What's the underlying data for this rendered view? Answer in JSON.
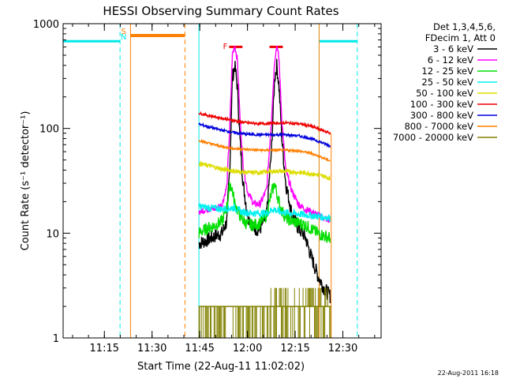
{
  "chart_data": {
    "type": "line",
    "title": "HESSI Observing Summary Count Rates",
    "xlabel": "Start Time (22-Aug-11 11:02:02)",
    "ylabel": "Count Rate (s⁻¹ detector⁻¹)",
    "y_scale": "log",
    "ylim": [
      1,
      1000
    ],
    "xlim_minutes": [
      0,
      100
    ],
    "x_ticks": [
      {
        "label": "11:15",
        "minute": 12.97
      },
      {
        "label": "11:30",
        "minute": 27.97
      },
      {
        "label": "11:45",
        "minute": 42.97
      },
      {
        "label": "12:00",
        "minute": 57.97
      },
      {
        "label": "12:15",
        "minute": 72.97
      },
      {
        "label": "12:30",
        "minute": 87.97
      }
    ],
    "y_ticks": [
      {
        "label": "1",
        "value": 1
      },
      {
        "label": "10",
        "value": 10
      },
      {
        "label": "100",
        "value": 100
      },
      {
        "label": "1000",
        "value": 1000
      }
    ],
    "legend": {
      "placement": "top-right",
      "header": [
        "Det 1,3,4,5,6,",
        "FDecim 1, Att 0"
      ]
    },
    "timestamp": "22-Aug-2011 16:18",
    "flags": [
      {
        "label": "S",
        "color": "#ff8000",
        "minute": 19.0
      },
      {
        "label": "N",
        "color": "#00e8e8",
        "minute": 19.0
      },
      {
        "label": "F",
        "color": "#ee0000",
        "minute": 51.0
      }
    ],
    "flare_bars": [
      {
        "start": 52.2,
        "end": 56.4,
        "value": 600
      },
      {
        "start": 64.9,
        "end": 69.1,
        "value": 600
      }
    ],
    "night_bars": [
      {
        "start": 0,
        "end": 17.9,
        "value": 680
      },
      {
        "start": 80.5,
        "end": 92.5,
        "value": 680
      }
    ],
    "saa_bars": [
      {
        "start": 21.2,
        "end": 38.3,
        "value": 770
      }
    ],
    "saa_lines": {
      "solid": [
        21.2,
        80.5
      ],
      "dashed": [
        38.3
      ]
    },
    "night_lines": {
      "solid": [
        42.7,
        80.5
      ],
      "dashed": [
        17.9,
        92.5
      ]
    },
    "data_window": {
      "start": 42.7,
      "end": 84.3
    },
    "series": [
      {
        "name": "3 - 6 keV",
        "color": "#000000",
        "points": [
          [
            42.7,
            8.0
          ],
          [
            45,
            8.5
          ],
          [
            48,
            9.5
          ],
          [
            50,
            10
          ],
          [
            51.5,
            13
          ],
          [
            52.5,
            50
          ],
          [
            53.2,
            300
          ],
          [
            54,
            400
          ],
          [
            54.8,
            250
          ],
          [
            55.6,
            80
          ],
          [
            56.6,
            30
          ],
          [
            58,
            15
          ],
          [
            60,
            11
          ],
          [
            62,
            11
          ],
          [
            64,
            15
          ],
          [
            65.5,
            60
          ],
          [
            66.5,
            300
          ],
          [
            67.2,
            400
          ],
          [
            67.9,
            250
          ],
          [
            68.8,
            80
          ],
          [
            70,
            30
          ],
          [
            72,
            15
          ],
          [
            74,
            11
          ],
          [
            76,
            9.5
          ],
          [
            78,
            6
          ],
          [
            80,
            4
          ],
          [
            82,
            3
          ],
          [
            84,
            2.5
          ]
        ]
      },
      {
        "name": "6 - 12 keV",
        "color": "#ff00ff",
        "points": [
          [
            42.7,
            16
          ],
          [
            45,
            17
          ],
          [
            48,
            17
          ],
          [
            50,
            19
          ],
          [
            51.5,
            28
          ],
          [
            52.5,
            120
          ],
          [
            53.2,
            500
          ],
          [
            54,
            620
          ],
          [
            54.8,
            450
          ],
          [
            55.6,
            130
          ],
          [
            56.6,
            45
          ],
          [
            58,
            25
          ],
          [
            60,
            19
          ],
          [
            62,
            19
          ],
          [
            64,
            26
          ],
          [
            65.5,
            120
          ],
          [
            66.5,
            450
          ],
          [
            67.2,
            620
          ],
          [
            67.9,
            450
          ],
          [
            68.8,
            120
          ],
          [
            70,
            40
          ],
          [
            72,
            25
          ],
          [
            74,
            19
          ],
          [
            76,
            17
          ],
          [
            78,
            16
          ],
          [
            80,
            15
          ],
          [
            82,
            14
          ],
          [
            84,
            13
          ]
        ]
      },
      {
        "name": "12 - 25 keV",
        "color": "#00dd00",
        "points": [
          [
            42.7,
            10
          ],
          [
            45,
            11
          ],
          [
            48,
            12
          ],
          [
            50,
            13
          ],
          [
            51.5,
            18
          ],
          [
            52.5,
            30
          ],
          [
            53.2,
            26
          ],
          [
            54,
            19
          ],
          [
            56,
            14
          ],
          [
            58,
            12
          ],
          [
            60,
            12
          ],
          [
            62,
            12.5
          ],
          [
            64,
            15
          ],
          [
            65.5,
            24
          ],
          [
            66.5,
            30
          ],
          [
            67.2,
            24
          ],
          [
            68.5,
            17
          ],
          [
            70,
            14
          ],
          [
            72,
            13
          ],
          [
            74,
            12.5
          ],
          [
            76,
            12
          ],
          [
            78,
            11
          ],
          [
            80,
            10
          ],
          [
            82,
            9.5
          ],
          [
            84,
            9
          ]
        ]
      },
      {
        "name": "25 - 50 keV",
        "color": "#00f0f0",
        "points": [
          [
            42.7,
            18
          ],
          [
            46,
            17.5
          ],
          [
            50,
            17
          ],
          [
            54,
            17.5
          ],
          [
            56,
            16
          ],
          [
            60,
            15.5
          ],
          [
            64,
            15.5
          ],
          [
            66,
            17
          ],
          [
            68,
            16
          ],
          [
            72,
            15.5
          ],
          [
            76,
            15
          ],
          [
            80,
            14.5
          ],
          [
            84,
            14
          ]
        ]
      },
      {
        "name": "50 - 100 keV",
        "color": "#dddd00",
        "points": [
          [
            42.7,
            46
          ],
          [
            46,
            44
          ],
          [
            50,
            41
          ],
          [
            54,
            39
          ],
          [
            58,
            38
          ],
          [
            62,
            38
          ],
          [
            66,
            39
          ],
          [
            70,
            39
          ],
          [
            74,
            38
          ],
          [
            78,
            37
          ],
          [
            82,
            35
          ],
          [
            84,
            33
          ]
        ]
      },
      {
        "name": "100 - 300 keV",
        "color": "#ee0000",
        "points": [
          [
            42.7,
            140
          ],
          [
            46,
            132
          ],
          [
            50,
            125
          ],
          [
            54,
            118
          ],
          [
            58,
            113
          ],
          [
            62,
            111
          ],
          [
            66,
            112
          ],
          [
            70,
            113
          ],
          [
            74,
            111
          ],
          [
            78,
            105
          ],
          [
            82,
            95
          ],
          [
            84,
            90
          ]
        ]
      },
      {
        "name": "300 - 800 keV",
        "color": "#0000dd",
        "points": [
          [
            42.7,
            110
          ],
          [
            46,
            103
          ],
          [
            50,
            96
          ],
          [
            54,
            91
          ],
          [
            58,
            88
          ],
          [
            62,
            87
          ],
          [
            66,
            87
          ],
          [
            70,
            87
          ],
          [
            74,
            85
          ],
          [
            78,
            80
          ],
          [
            82,
            72
          ],
          [
            84,
            68
          ]
        ]
      },
      {
        "name": "800 - 7000 keV",
        "color": "#ff7f00",
        "points": [
          [
            42.7,
            77
          ],
          [
            46,
            72
          ],
          [
            50,
            67
          ],
          [
            54,
            64
          ],
          [
            58,
            63
          ],
          [
            62,
            62
          ],
          [
            66,
            62
          ],
          [
            70,
            62
          ],
          [
            74,
            61
          ],
          [
            78,
            58
          ],
          [
            82,
            52
          ],
          [
            84,
            49
          ]
        ]
      },
      {
        "name": "7000 - 20000 keV",
        "color": "#808000",
        "points": [
          [
            42.7,
            2
          ],
          [
            84.3,
            2
          ]
        ]
      }
    ]
  }
}
